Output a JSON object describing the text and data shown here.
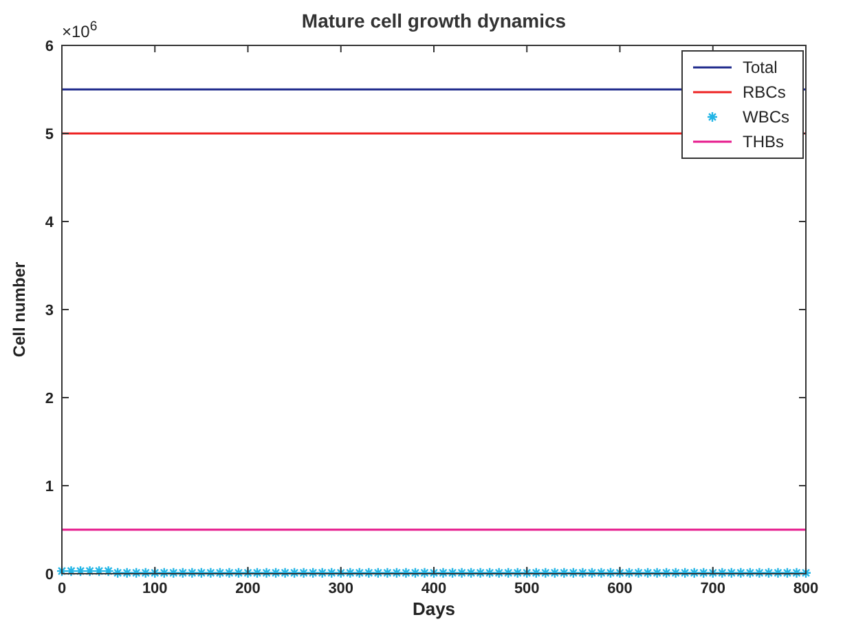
{
  "chart_data": {
    "type": "line",
    "title": "Mature cell growth dynamics",
    "xlabel": "Days",
    "ylabel": "Cell number",
    "annotations": [
      "×10$^{6}$"
    ],
    "xlim": [
      0,
      800
    ],
    "ylim": [
      0,
      6
    ],
    "xticks": [
      0,
      100,
      200,
      300,
      400,
      500,
      600,
      700,
      800
    ],
    "yticks": [
      0,
      1,
      2,
      3,
      4,
      5,
      6
    ],
    "legend": "top right",
    "grid": false,
    "series": [
      {
        "name": "Total",
        "color": "#1f2a8c",
        "x": [
          0,
          800
        ],
        "values": [
          5.5,
          5.5
        ]
      },
      {
        "name": "RBCs",
        "color": "#ee2222",
        "x": [
          0,
          800
        ],
        "values": [
          5,
          5
        ]
      },
      {
        "name": "WBCs",
        "type": "scatter",
        "marker": "cross",
        "color": "#22b5e6",
        "x": [
          0,
          10,
          20,
          30,
          40,
          50,
          60,
          70,
          80,
          90,
          100,
          110,
          120,
          130,
          140,
          150,
          160,
          170,
          180,
          190,
          200,
          210,
          220,
          230,
          240,
          250,
          260,
          270,
          280,
          290,
          300,
          310,
          320,
          330,
          340,
          350,
          360,
          370,
          380,
          390,
          400,
          410,
          420,
          430,
          440,
          450,
          460,
          470,
          480,
          490,
          500,
          510,
          520,
          530,
          540,
          550,
          560,
          570,
          580,
          590,
          600,
          610,
          620,
          630,
          640,
          650,
          660,
          670,
          680,
          690,
          700,
          710,
          720,
          730,
          740,
          750,
          760,
          770,
          780,
          790,
          800
        ],
        "values": [
          0.03,
          0.03,
          0.03,
          0.03,
          0.03,
          0.03,
          0.01,
          0.01,
          0.01,
          0.01,
          0.01,
          0.01,
          0.01,
          0.01,
          0.01,
          0.01,
          0.01,
          0.01,
          0.01,
          0.01,
          0.01,
          0.01,
          0.01,
          0.01,
          0.01,
          0.01,
          0.01,
          0.01,
          0.01,
          0.01,
          0.01,
          0.01,
          0.01,
          0.01,
          0.01,
          0.01,
          0.01,
          0.01,
          0.01,
          0.01,
          0.01,
          0.01,
          0.01,
          0.01,
          0.01,
          0.01,
          0.01,
          0.01,
          0.01,
          0.01,
          0.01,
          0.01,
          0.01,
          0.01,
          0.01,
          0.01,
          0.01,
          0.01,
          0.01,
          0.01,
          0.01,
          0.01,
          0.01,
          0.01,
          0.01,
          0.01,
          0.01,
          0.01,
          0.01,
          0.01,
          0.01,
          0.01,
          0.01,
          0.01,
          0.01,
          0.01,
          0.01,
          0.01,
          0.01,
          0.01,
          0.01
        ]
      },
      {
        "name": "THBs",
        "color": "#e6198c",
        "x": [
          0,
          800
        ],
        "values": [
          0.5,
          0.5
        ]
      }
    ]
  }
}
